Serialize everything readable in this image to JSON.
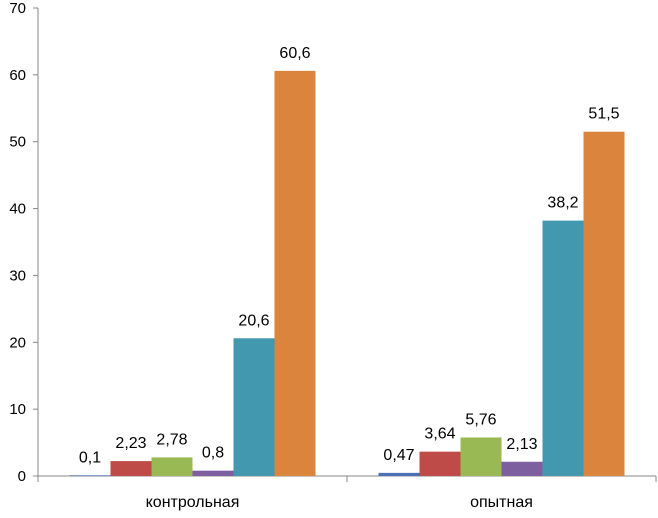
{
  "chart_data": {
    "type": "bar",
    "categories": [
      "контрольная",
      "опытная"
    ],
    "series": [
      {
        "values": [
          0.1,
          0.47
        ],
        "labels": [
          "0,1",
          "0,47"
        ],
        "color": "#4a6fb5"
      },
      {
        "values": [
          2.23,
          3.64
        ],
        "labels": [
          "2,23",
          "3,64"
        ],
        "color": "#be4b48"
      },
      {
        "values": [
          2.78,
          5.76
        ],
        "labels": [
          "2,78",
          "5,76"
        ],
        "color": "#98b954"
      },
      {
        "values": [
          0.8,
          2.13
        ],
        "labels": [
          "0,8",
          "2,13"
        ],
        "color": "#7d5fa0"
      },
      {
        "values": [
          20.6,
          38.2
        ],
        "labels": [
          "20,6",
          "38,2"
        ],
        "color": "#4298af"
      },
      {
        "values": [
          60.6,
          51.5
        ],
        "labels": [
          "60,6",
          "51,5"
        ],
        "color": "#db843d"
      }
    ],
    "ylim": [
      0,
      70
    ],
    "yticks": [
      "0",
      "10",
      "20",
      "30",
      "40",
      "50",
      "60",
      "70"
    ],
    "grid": false,
    "legend": "none"
  }
}
